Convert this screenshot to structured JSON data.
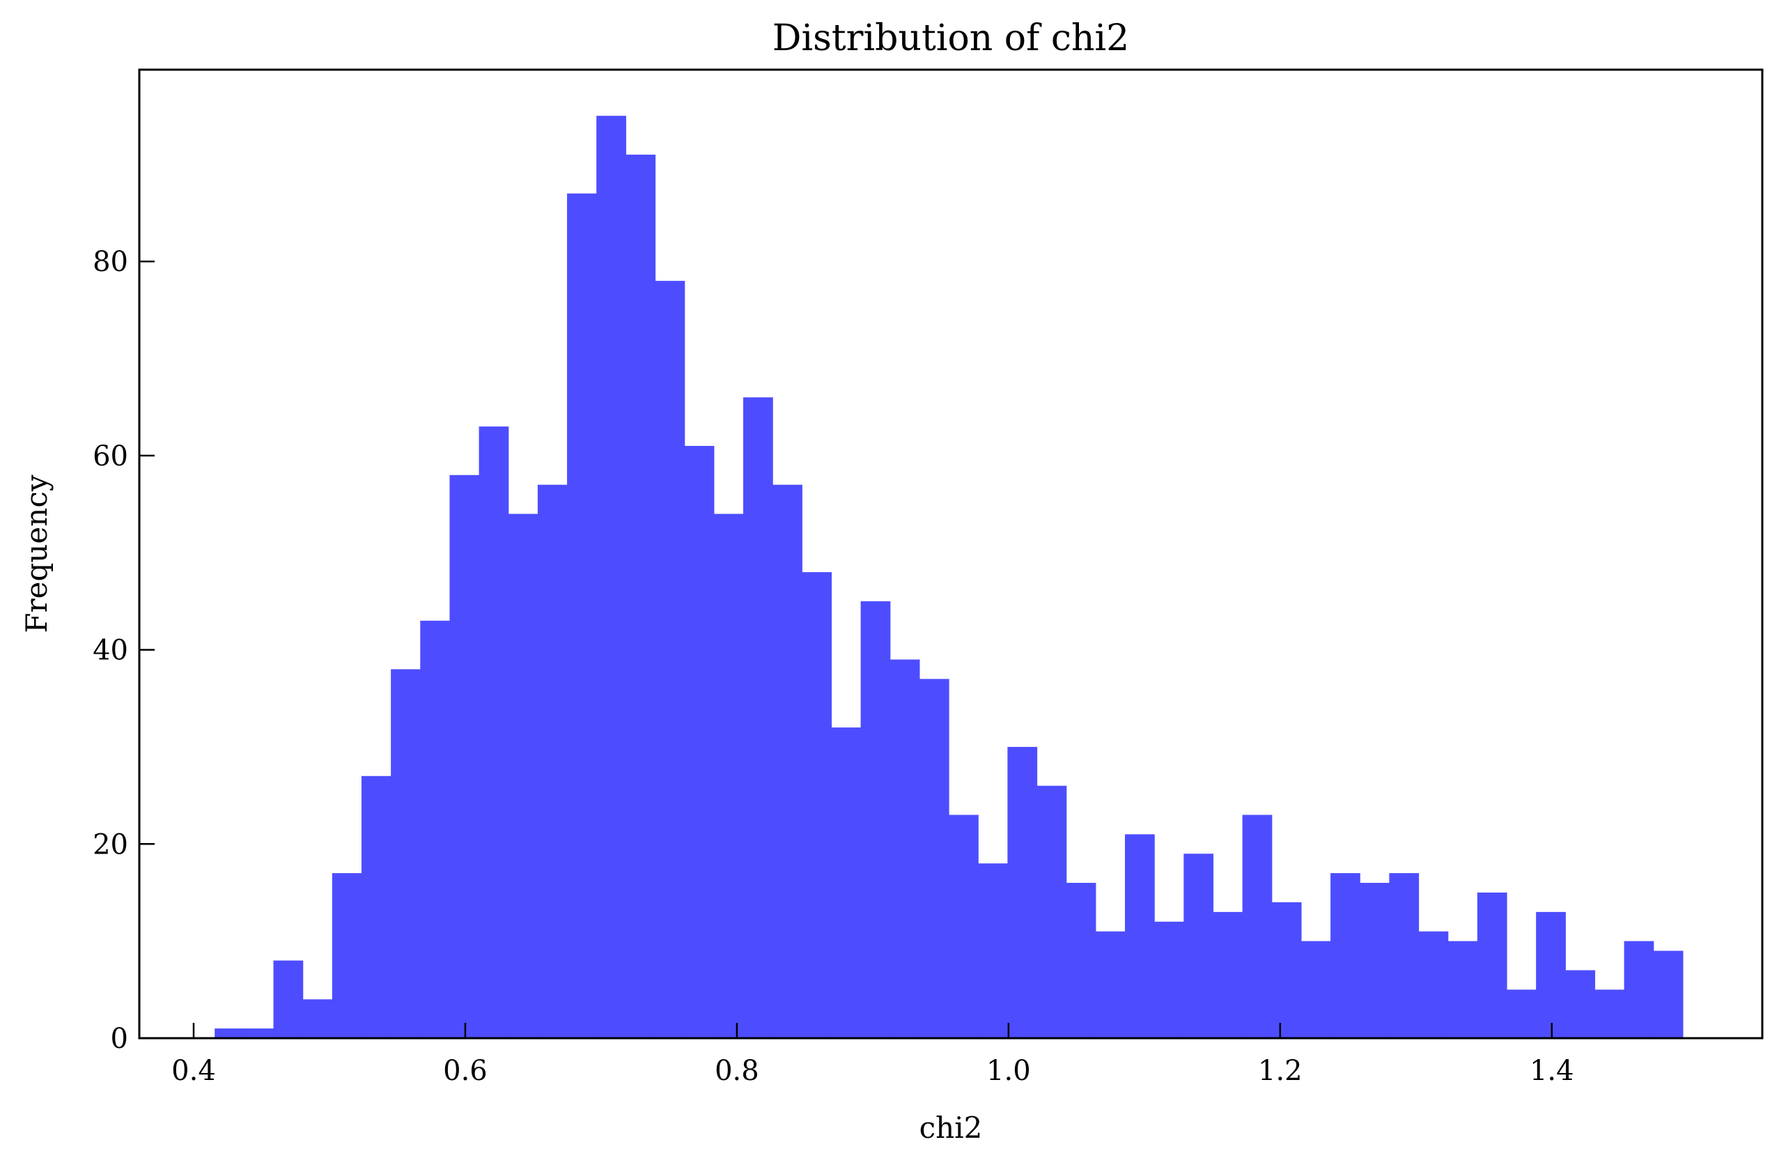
{
  "chart_data": {
    "type": "bar",
    "title": "Distribution of chi2",
    "xlabel": "chi2",
    "ylabel": "Frequency",
    "bar_color": "#4d4dff",
    "xlim": [
      0.36,
      1.555
    ],
    "ylim": [
      0,
      99.75
    ],
    "grid": false,
    "x_ticks": [
      {
        "value": 0.4,
        "label": "0.4"
      },
      {
        "value": 0.6,
        "label": "0.6"
      },
      {
        "value": 0.8,
        "label": "0.8"
      },
      {
        "value": 1.0,
        "label": "1.0"
      },
      {
        "value": 1.2,
        "label": "1.2"
      },
      {
        "value": 1.4,
        "label": "1.4"
      }
    ],
    "y_ticks": [
      {
        "value": 0,
        "label": "0"
      },
      {
        "value": 20,
        "label": "20"
      },
      {
        "value": 40,
        "label": "40"
      },
      {
        "value": 60,
        "label": "60"
      },
      {
        "value": 80,
        "label": "80"
      }
    ],
    "bin_start": 0.4155,
    "bin_width": 0.02162,
    "values": [
      1,
      1,
      8,
      4,
      17,
      27,
      38,
      43,
      58,
      63,
      54,
      57,
      87,
      95,
      91,
      78,
      61,
      54,
      66,
      57,
      48,
      32,
      45,
      39,
      37,
      23,
      18,
      30,
      26,
      16,
      11,
      21,
      12,
      19,
      13,
      23,
      14,
      10,
      17,
      16,
      17,
      11,
      10,
      15,
      5,
      13,
      7,
      5,
      10,
      9
    ]
  }
}
